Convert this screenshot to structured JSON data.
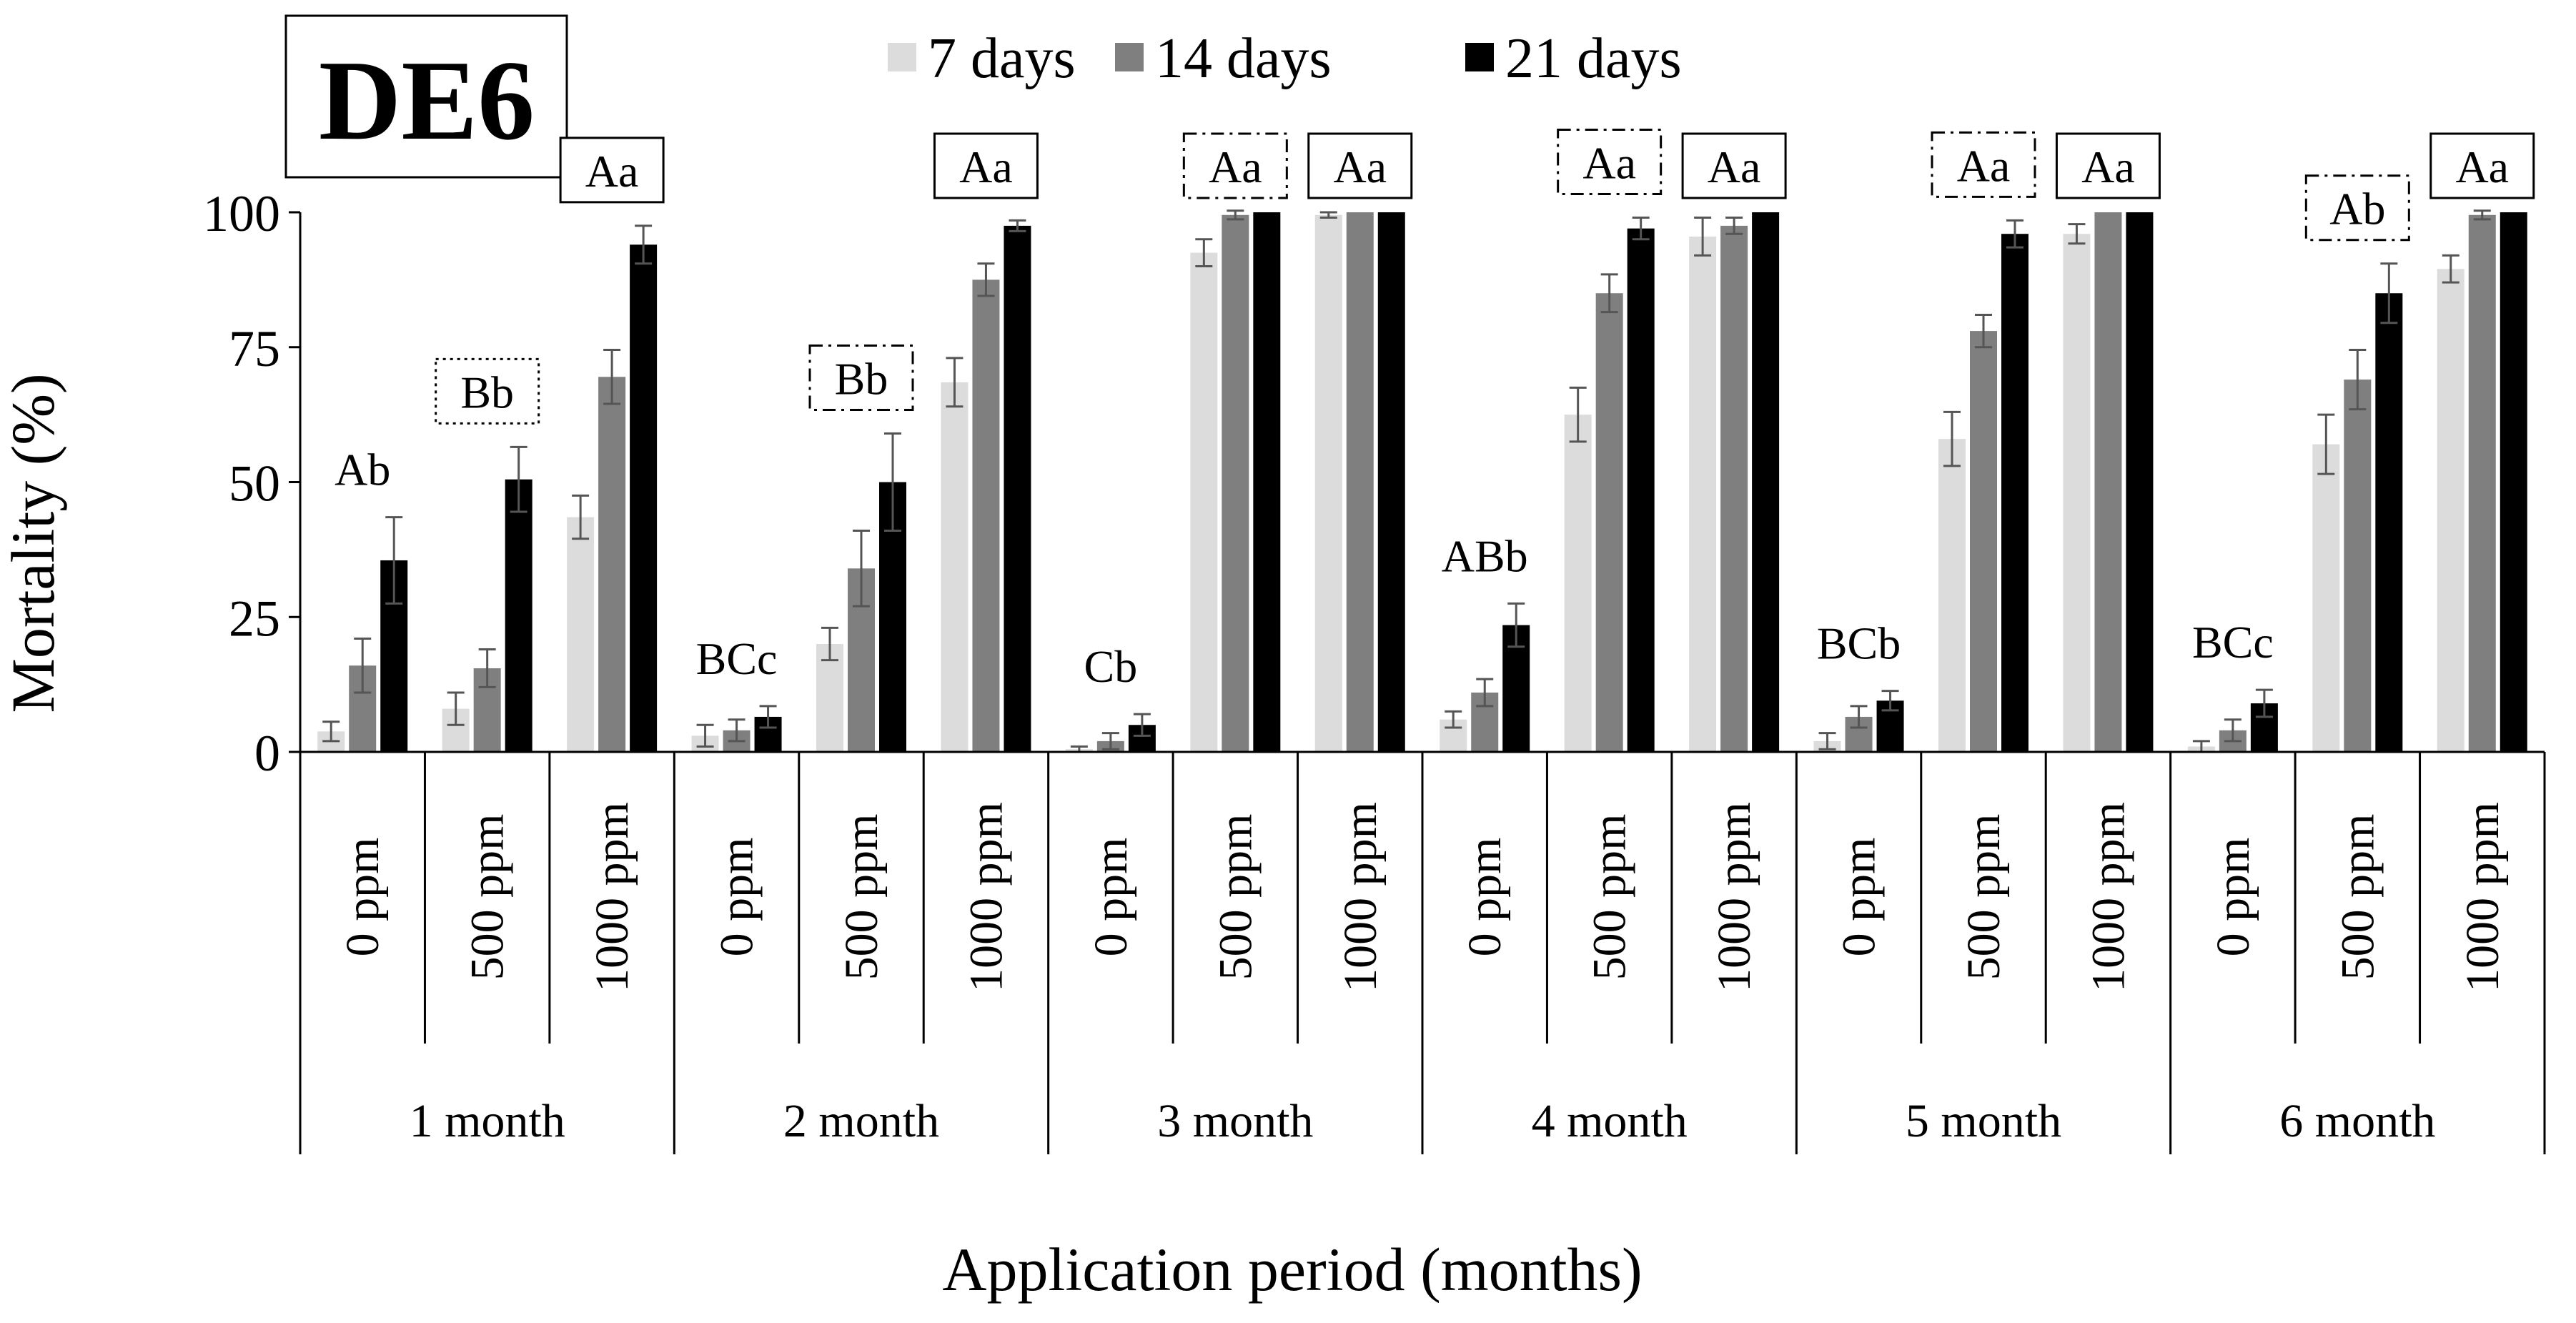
{
  "chart_data": {
    "type": "bar",
    "panel_label": "DE6",
    "title": "",
    "xlabel": "Application period (months)",
    "ylabel": "Mortality (%)",
    "ylim": [
      0,
      100
    ],
    "yticks": [
      0,
      25,
      50,
      75,
      100
    ],
    "grid": false,
    "legend_position": "top",
    "series": [
      {
        "name": "7 days",
        "color": "#dcdcdc"
      },
      {
        "name": "14 days",
        "color": "#7f7f7f"
      },
      {
        "name": "21 days",
        "color": "#000000"
      }
    ],
    "groups": [
      {
        "label": "1 month",
        "items": [
          {
            "dose": "0 ppm",
            "values": [
              3.8,
              16.0,
              35.5
            ],
            "errors": [
              1.8,
              5.0,
              8.0
            ],
            "annotation": "Ab",
            "box": "none"
          },
          {
            "dose": "500 ppm",
            "values": [
              8.0,
              15.5,
              50.5
            ],
            "errors": [
              3.0,
              3.5,
              6.0
            ],
            "annotation": "Bb",
            "box": "dotted"
          },
          {
            "dose": "1000 ppm",
            "values": [
              43.5,
              69.5,
              94.0
            ],
            "errors": [
              4.0,
              5.0,
              3.5
            ],
            "annotation": "Aa",
            "box": "solid"
          }
        ]
      },
      {
        "label": "2 month",
        "items": [
          {
            "dose": "0 ppm",
            "values": [
              3.0,
              4.0,
              6.5
            ],
            "errors": [
              2.0,
              2.0,
              2.0
            ],
            "annotation": "BCc",
            "box": "none"
          },
          {
            "dose": "500 ppm",
            "values": [
              20.0,
              34.0,
              50.0
            ],
            "errors": [
              3.0,
              7.0,
              9.0
            ],
            "annotation": "Bb",
            "box": "dashdot"
          },
          {
            "dose": "1000 ppm",
            "values": [
              68.5,
              87.5,
              97.5
            ],
            "errors": [
              4.5,
              3.0,
              1.0
            ],
            "annotation": "Aa",
            "box": "solid"
          }
        ]
      },
      {
        "label": "3 month",
        "items": [
          {
            "dose": "0 ppm",
            "values": [
              0.5,
              2.0,
              5.0
            ],
            "errors": [
              0.5,
              1.5,
              2.0
            ],
            "annotation": "Cb",
            "box": "none"
          },
          {
            "dose": "500 ppm",
            "values": [
              92.5,
              99.5,
              100.0
            ],
            "errors": [
              2.5,
              0.8,
              0.0
            ],
            "annotation": "Aa",
            "box": "dashdot"
          },
          {
            "dose": "1000 ppm",
            "values": [
              99.5,
              100.0,
              100.0
            ],
            "errors": [
              0.5,
              0.0,
              0.0
            ],
            "annotation": "Aa",
            "box": "solid"
          }
        ]
      },
      {
        "label": "4 month",
        "items": [
          {
            "dose": "0 ppm",
            "values": [
              6.0,
              11.0,
              23.5
            ],
            "errors": [
              1.5,
              2.5,
              4.0
            ],
            "annotation": "ABb",
            "box": "none"
          },
          {
            "dose": "500 ppm",
            "values": [
              62.5,
              85.0,
              97.0
            ],
            "errors": [
              5.0,
              3.5,
              2.0
            ],
            "annotation": "Aa",
            "box": "dashdot"
          },
          {
            "dose": "1000 ppm",
            "values": [
              95.5,
              97.5,
              100.0
            ],
            "errors": [
              3.5,
              1.5,
              0.0
            ],
            "annotation": "Aa",
            "box": "solid"
          }
        ]
      },
      {
        "label": "5 month",
        "items": [
          {
            "dose": "0 ppm",
            "values": [
              2.0,
              6.5,
              9.5
            ],
            "errors": [
              1.5,
              2.0,
              1.8
            ],
            "annotation": "BCb",
            "box": "none"
          },
          {
            "dose": "500 ppm",
            "values": [
              58.0,
              78.0,
              96.0
            ],
            "errors": [
              5.0,
              3.0,
              2.5
            ],
            "annotation": "Aa",
            "box": "dashdot"
          },
          {
            "dose": "1000 ppm",
            "values": [
              96.0,
              100.0,
              100.0
            ],
            "errors": [
              1.8,
              0.0,
              0.0
            ],
            "annotation": "Aa",
            "box": "solid"
          }
        ]
      },
      {
        "label": "6 month",
        "items": [
          {
            "dose": "0 ppm",
            "values": [
              1.0,
              4.0,
              9.0
            ],
            "errors": [
              1.0,
              2.0,
              2.5
            ],
            "annotation": "BCc",
            "box": "none"
          },
          {
            "dose": "500 ppm",
            "values": [
              57.0,
              69.0,
              85.0
            ],
            "errors": [
              5.5,
              5.5,
              5.5
            ],
            "annotation": "Ab",
            "box": "dashdot"
          },
          {
            "dose": "1000 ppm",
            "values": [
              89.5,
              99.5,
              100.0
            ],
            "errors": [
              2.5,
              0.8,
              0.0
            ],
            "annotation": "Aa",
            "box": "solid"
          }
        ]
      }
    ]
  }
}
